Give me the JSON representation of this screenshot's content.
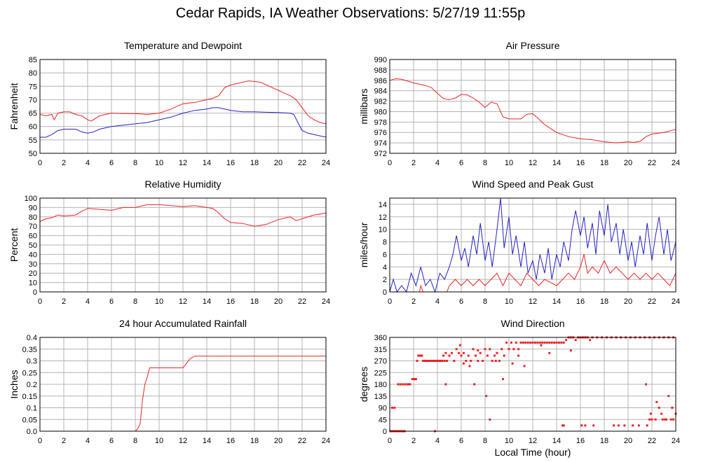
{
  "page": {
    "title": "Cedar Rapids, IA Weather Observations: 5/27/19 11:55p"
  },
  "chart_data": [
    {
      "id": "temp",
      "type": "line",
      "title": "Temperature and Dewpoint",
      "xlabel": "",
      "ylabel": "Fahrenheit",
      "xlim": [
        0,
        24
      ],
      "ylim": [
        50,
        85
      ],
      "xticks": [
        0,
        2,
        4,
        6,
        8,
        10,
        12,
        14,
        16,
        18,
        20,
        22,
        24
      ],
      "yticks": [
        50,
        55,
        60,
        65,
        70,
        75,
        80,
        85
      ],
      "grid": true,
      "series": [
        {
          "color": "#ee2222",
          "x": [
            0,
            0.5,
            1.0,
            1.2,
            1.5,
            2.0,
            2.5,
            3.0,
            3.5,
            4.0,
            4.3,
            5.0,
            6.0,
            7.0,
            8.0,
            9.0,
            10.0,
            11.0,
            12.0,
            13.0,
            14.0,
            14.5,
            15.0,
            15.5,
            16.0,
            16.5,
            17.0,
            17.5,
            18.0,
            18.5,
            19.0,
            19.5,
            20.0,
            20.5,
            21.0,
            21.5,
            22.0,
            22.5,
            23.0,
            23.5,
            24.0
          ],
          "y": [
            64.5,
            64,
            64.5,
            62.5,
            65,
            65.5,
            65.5,
            64.5,
            64,
            62.5,
            62,
            64,
            65,
            64.8,
            64.8,
            64.5,
            65,
            66.5,
            68.5,
            69,
            70,
            70.5,
            71.5,
            74.5,
            75.5,
            76,
            76.5,
            77,
            76.8,
            76.5,
            75.5,
            74.5,
            73.5,
            72.5,
            71.5,
            70,
            67,
            64,
            62.5,
            61.5,
            61
          ]
        },
        {
          "color": "#2222cc",
          "x": [
            0,
            0.5,
            1.0,
            1.5,
            2.0,
            3.0,
            3.5,
            4.0,
            4.5,
            5.0,
            6.0,
            7.0,
            8.0,
            9.0,
            10.0,
            11.0,
            12.0,
            13.0,
            14.0,
            14.5,
            15.0,
            15.5,
            16.0,
            17.0,
            18.0,
            19.0,
            20.0,
            21.0,
            21.3,
            21.7,
            22.0,
            22.5,
            23.0,
            24.0
          ],
          "y": [
            56,
            56,
            57,
            58.5,
            59,
            59,
            58,
            57.5,
            58,
            59,
            60,
            60.5,
            61,
            61.5,
            62.5,
            63.5,
            65,
            66,
            66.5,
            67,
            67,
            66.5,
            66,
            65.5,
            65.5,
            65.3,
            65.2,
            65,
            64.5,
            61,
            58.5,
            57.5,
            57,
            56
          ]
        }
      ]
    },
    {
      "id": "pressure",
      "type": "line",
      "title": "Air Pressure",
      "xlabel": "",
      "ylabel": "millibars",
      "xlim": [
        0,
        24
      ],
      "ylim": [
        972,
        990
      ],
      "xticks": [
        0,
        2,
        4,
        6,
        8,
        10,
        12,
        14,
        16,
        18,
        20,
        22,
        24
      ],
      "yticks": [
        972,
        974,
        976,
        978,
        980,
        982,
        984,
        986,
        988,
        990
      ],
      "grid": true,
      "series": [
        {
          "color": "#ee2222",
          "x": [
            0,
            0.5,
            1.0,
            2.0,
            3.0,
            3.5,
            4.0,
            4.5,
            5.0,
            5.5,
            6.0,
            6.5,
            7.0,
            7.5,
            8.0,
            8.5,
            9.0,
            9.5,
            10.0,
            11.0,
            11.5,
            12.0,
            12.5,
            13.0,
            14.0,
            15.0,
            16.0,
            17.0,
            18.0,
            19.0,
            20.0,
            20.5,
            21.0,
            21.5,
            22.0,
            23.0,
            24.0
          ],
          "y": [
            986,
            986.3,
            986.2,
            985.5,
            985,
            984.6,
            983.5,
            982.5,
            982.3,
            982.6,
            983.3,
            983.2,
            982.6,
            981.8,
            980.8,
            981.8,
            981.5,
            979,
            978.6,
            978.6,
            979.5,
            979.6,
            978.6,
            977.5,
            976,
            975.2,
            974.8,
            974.6,
            974.2,
            974,
            974.2,
            974.1,
            974.3,
            975.2,
            975.7,
            976,
            976.6
          ]
        }
      ]
    },
    {
      "id": "humidity",
      "type": "line",
      "title": "Relative Humidity",
      "xlabel": "",
      "ylabel": "Percent",
      "xlim": [
        0,
        24
      ],
      "ylim": [
        0,
        100
      ],
      "xticks": [
        0,
        2,
        4,
        6,
        8,
        10,
        12,
        14,
        16,
        18,
        20,
        22,
        24
      ],
      "yticks": [
        0,
        10,
        20,
        30,
        40,
        50,
        60,
        70,
        80,
        90,
        100
      ],
      "grid": true,
      "series": [
        {
          "color": "#ee2222",
          "x": [
            0,
            0.5,
            1.0,
            1.5,
            2.0,
            3.0,
            3.5,
            4.0,
            5.0,
            6.0,
            7.0,
            8.0,
            9.0,
            10.0,
            11.0,
            12.0,
            13.0,
            14.0,
            14.5,
            15.0,
            15.5,
            16.0,
            17.0,
            18.0,
            19.0,
            20.0,
            21.0,
            21.5,
            22.0,
            23.0,
            24.0
          ],
          "y": [
            75,
            78,
            79,
            82,
            81,
            82,
            86,
            89,
            88,
            87,
            90,
            90,
            93,
            93,
            92,
            91,
            92,
            90,
            89,
            84,
            78,
            74,
            73,
            70,
            72,
            77,
            80,
            76,
            78,
            82,
            84
          ]
        }
      ]
    },
    {
      "id": "wind",
      "type": "line",
      "title": "Wind Speed and Peak Gust",
      "xlabel": "",
      "ylabel": "miles/hour",
      "xlim": [
        0,
        24
      ],
      "ylim": [
        0,
        15
      ],
      "xticks": [
        0,
        2,
        4,
        6,
        8,
        10,
        12,
        14,
        16,
        18,
        20,
        22,
        24
      ],
      "yticks": [
        0,
        2,
        4,
        6,
        8,
        10,
        12,
        14
      ],
      "grid": true,
      "series": [
        {
          "color": "#2222cc",
          "x": [
            0,
            0.3,
            0.6,
            1.0,
            1.4,
            1.8,
            2.2,
            2.6,
            3.0,
            3.4,
            3.8,
            4.2,
            4.6,
            5.0,
            5.3,
            5.6,
            6.0,
            6.3,
            6.6,
            7.0,
            7.3,
            7.6,
            8.0,
            8.3,
            8.6,
            9.0,
            9.3,
            9.6,
            10.0,
            10.3,
            10.6,
            11.0,
            11.3,
            11.6,
            12.0,
            12.3,
            12.6,
            13.0,
            13.3,
            13.6,
            14.0,
            14.3,
            14.6,
            15.0,
            15.3,
            15.6,
            16.0,
            16.3,
            16.6,
            17.0,
            17.3,
            17.6,
            18.0,
            18.3,
            18.6,
            19.0,
            19.3,
            19.6,
            20.0,
            20.3,
            20.6,
            21.0,
            21.3,
            21.6,
            22.0,
            22.3,
            22.6,
            23.0,
            23.3,
            23.6,
            24.0
          ],
          "y": [
            0,
            2,
            0,
            1,
            0,
            3,
            1,
            4,
            1,
            2,
            0,
            3,
            2,
            4,
            6,
            9,
            5,
            7,
            4,
            9,
            6,
            11,
            5,
            8,
            4,
            10,
            15,
            7,
            12,
            6,
            9,
            4,
            8,
            3,
            5,
            2,
            6,
            3,
            7,
            2,
            6,
            4,
            8,
            5,
            10,
            13,
            9,
            12,
            7,
            11,
            6,
            13,
            9,
            14,
            8,
            11,
            6,
            10,
            5,
            8,
            4,
            9,
            6,
            11,
            5,
            9,
            12,
            6,
            10,
            5,
            8
          ]
        },
        {
          "color": "#ee2222",
          "x": [
            0,
            2.5,
            2.6,
            2.8,
            3.0,
            4.8,
            5.0,
            5.5,
            6.0,
            6.5,
            7.0,
            7.5,
            8.0,
            8.5,
            9.0,
            9.5,
            10.0,
            10.5,
            11.0,
            11.5,
            12.0,
            12.5,
            13.0,
            14.0,
            14.5,
            15.0,
            15.5,
            16.0,
            16.3,
            16.6,
            17.0,
            17.5,
            18.0,
            18.5,
            19.0,
            19.5,
            20.0,
            20.5,
            21.0,
            21.5,
            22.0,
            22.5,
            23.0,
            23.5,
            24.0
          ],
          "y": [
            0,
            0,
            1,
            0,
            0,
            0,
            1,
            2,
            1,
            2,
            1,
            2,
            1,
            2,
            3,
            1,
            3,
            2,
            1,
            3,
            2,
            1,
            2,
            1,
            2,
            3,
            2,
            4,
            6,
            3,
            4,
            3,
            5,
            3,
            4,
            3,
            2,
            3,
            2,
            3,
            2,
            3,
            2,
            1,
            3
          ]
        }
      ]
    },
    {
      "id": "rain",
      "type": "line",
      "title": "24 hour Accumulated Rainfall",
      "xlabel": "",
      "ylabel": "Inches",
      "xlim": [
        0,
        24
      ],
      "ylim": [
        0,
        0.4
      ],
      "xticks": [
        0,
        2,
        4,
        6,
        8,
        10,
        12,
        14,
        16,
        18,
        20,
        22,
        24
      ],
      "yticks": [
        "0.0",
        "0.05",
        "0.1",
        "0.15",
        "0.2",
        "0.25",
        "0.3",
        "0.35",
        "0.4"
      ],
      "grid": true,
      "series": [
        {
          "color": "#ee2222",
          "x": [
            0,
            8.0,
            8.2,
            8.4,
            8.6,
            8.8,
            9.0,
            9.2,
            10.0,
            12.0,
            12.3,
            12.6,
            13.0,
            14.0,
            24.0
          ],
          "y": [
            0,
            0,
            0.01,
            0.03,
            0.13,
            0.2,
            0.23,
            0.27,
            0.27,
            0.27,
            0.29,
            0.31,
            0.32,
            0.32,
            0.32
          ]
        }
      ]
    },
    {
      "id": "direction",
      "type": "scatter",
      "title": "Wind Direction",
      "xlabel": "Local Time (hour)",
      "ylabel": "degrees",
      "xlim": [
        0,
        24
      ],
      "ylim": [
        0,
        360
      ],
      "xticks": [
        0,
        2,
        4,
        6,
        8,
        10,
        12,
        14,
        16,
        18,
        20,
        22,
        24
      ],
      "yticks": [
        0,
        45,
        90,
        135,
        180,
        225,
        270,
        315,
        360
      ],
      "grid": true,
      "series": [
        {
          "color": "#ee2222",
          "x": [
            0.05,
            0.2,
            0.35,
            0.5,
            0.65,
            0.8,
            0.95,
            1.1,
            1.25,
            0.2,
            0.4,
            0.7,
            0.9,
            1.1,
            1.3,
            1.5,
            1.6,
            1.7,
            1.9,
            2.0,
            2.1,
            2.2,
            2.3,
            2.4,
            2.5,
            2.6,
            2.7,
            2.8,
            2.9,
            3.0,
            3.1,
            3.2,
            3.3,
            3.4,
            3.5,
            3.6,
            3.7,
            3.8,
            3.9,
            4.0,
            4.1,
            4.2,
            4.3,
            4.4,
            4.5,
            4.6,
            4.7,
            4.8,
            5.0,
            5.2,
            5.4,
            5.6,
            5.8,
            6.0,
            6.2,
            6.4,
            6.6,
            6.8,
            7.0,
            7.2,
            7.4,
            7.6,
            7.8,
            8.0,
            8.2,
            8.4,
            8.6,
            8.8,
            9.0,
            9.2,
            9.4,
            9.6,
            9.8,
            10.0,
            10.2,
            10.4,
            10.6,
            10.8,
            11.0,
            11.2,
            11.4,
            11.6,
            11.8,
            12.0,
            12.2,
            12.4,
            12.6,
            12.8,
            13.0,
            13.2,
            13.4,
            13.6,
            13.8,
            14.0,
            14.2,
            14.4,
            14.6,
            14.8,
            15.0,
            15.2,
            15.4,
            15.6,
            15.8,
            16.0,
            16.2,
            16.4,
            16.6,
            16.8,
            17.0,
            17.4,
            17.8,
            18.2,
            18.6,
            19.0,
            19.4,
            19.8,
            20.2,
            20.6,
            21.0,
            21.4,
            21.8,
            22.2,
            22.6,
            23.0,
            23.4,
            23.8,
            3.8,
            4.7,
            5.9,
            6.2,
            6.7,
            7.1,
            7.4,
            8.1,
            8.4,
            8.9,
            9.5,
            10.3,
            10.8,
            11.3,
            12.7,
            13.4,
            14.5,
            14.6,
            15.2,
            16.1,
            16.4,
            17.1,
            18.8,
            19.2,
            19.7,
            20.4,
            20.9,
            21.5,
            21.8,
            22.0,
            22.3,
            22.6,
            22.9,
            23.1,
            23.4,
            23.6,
            23.8,
            24.0,
            21.6,
            21.9,
            22.4,
            22.8,
            23.2,
            23.7
          ],
          "y": [
            0,
            0,
            0,
            0,
            0,
            0,
            0,
            0,
            0,
            90,
            90,
            180,
            180,
            180,
            180,
            180,
            180,
            180,
            200,
            200,
            200,
            200,
            270,
            290,
            290,
            290,
            290,
            270,
            270,
            270,
            270,
            270,
            270,
            270,
            270,
            270,
            270,
            270,
            270,
            270,
            270,
            270,
            270,
            270,
            290,
            270,
            300,
            270,
            290,
            300,
            270,
            315,
            300,
            290,
            300,
            270,
            290,
            270,
            315,
            290,
            270,
            300,
            270,
            315,
            290,
            315,
            270,
            290,
            300,
            270,
            315,
            290,
            340,
            315,
            340,
            315,
            340,
            315,
            340,
            340,
            340,
            340,
            340,
            340,
            340,
            340,
            340,
            340,
            340,
            340,
            340,
            340,
            340,
            340,
            340,
            340,
            340,
            350,
            360,
            360,
            360,
            350,
            360,
            360,
            360,
            360,
            360,
            350,
            360,
            360,
            360,
            360,
            360,
            360,
            360,
            360,
            360,
            360,
            360,
            360,
            360,
            360,
            360,
            360,
            360,
            360,
            0,
            180,
            330,
            260,
            250,
            180,
            310,
            135,
            45,
            270,
            200,
            260,
            290,
            250,
            330,
            300,
            22,
            22,
            310,
            22,
            22,
            22,
            22,
            22,
            22,
            22,
            22,
            180,
            45,
            45,
            45,
            90,
            45,
            45,
            135,
            45,
            45,
            67,
            22,
            67,
            112,
            67,
            45,
            90
          ]
        }
      ]
    }
  ]
}
